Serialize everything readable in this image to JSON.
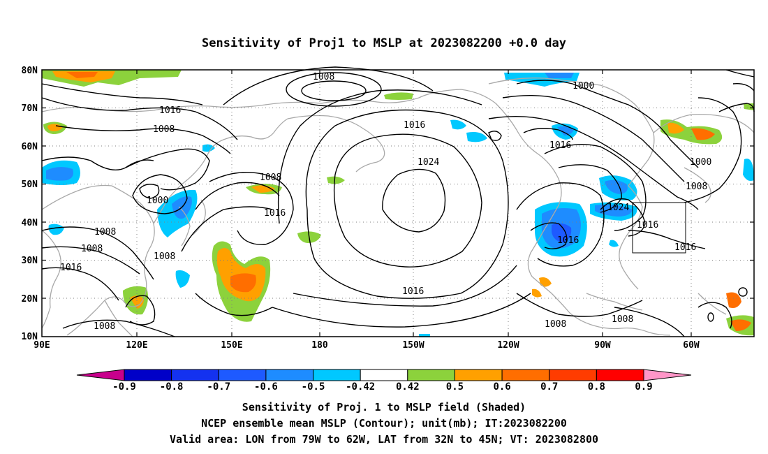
{
  "title": "Sensitivity of Proj1 to MSLP at 2023082200 +0.0 day",
  "lat_labels": [
    "80N",
    "70N",
    "60N",
    "50N",
    "40N",
    "30N",
    "20N",
    "10N"
  ],
  "lon_labels": [
    "90E",
    "120E",
    "150E",
    "180",
    "150W",
    "120W",
    "90W",
    "60W"
  ],
  "contour_labels": [
    {
      "text": "1008",
      "where": "arctic-north-pacific"
    },
    {
      "text": "1016",
      "where": "siberia"
    },
    {
      "text": "1008",
      "where": "siberia-west"
    },
    {
      "text": "1000",
      "where": "hudson-bay"
    },
    {
      "text": "1016",
      "where": "bering-strait"
    },
    {
      "text": "1024",
      "where": "pacific-high-center"
    },
    {
      "text": "1016",
      "where": "north-america-west"
    },
    {
      "text": "1000",
      "where": "greenland"
    },
    {
      "text": "1008",
      "where": "labrador"
    },
    {
      "text": "1008",
      "where": "kamchatka"
    },
    {
      "text": "1016",
      "where": "north-pacific-west"
    },
    {
      "text": "1000",
      "where": "east-asia-low"
    },
    {
      "text": "1008",
      "where": "east-asia-1"
    },
    {
      "text": "1008",
      "where": "tibet"
    },
    {
      "text": "1016",
      "where": "india"
    },
    {
      "text": "1008",
      "where": "south-china"
    },
    {
      "text": "1024",
      "where": "bermuda-high"
    },
    {
      "text": "1016",
      "where": "atlantic-coast"
    },
    {
      "text": "1016",
      "where": "gulf-coast"
    },
    {
      "text": "1016",
      "where": "subtropical-atlantic"
    },
    {
      "text": "1016",
      "where": "tropical-pacific"
    },
    {
      "text": "1008",
      "where": "south-china-sea"
    },
    {
      "text": "1008",
      "where": "central-america"
    },
    {
      "text": "1008",
      "where": "caribbean"
    }
  ],
  "colorbar": {
    "ticks": [
      "-0.9",
      "-0.8",
      "-0.7",
      "-0.6",
      "-0.5",
      "-0.42",
      "0.42",
      "0.5",
      "0.6",
      "0.7",
      "0.8",
      "0.9"
    ],
    "colors": [
      "#0000c8",
      "#1432f0",
      "#1e5aff",
      "#1e8cff",
      "#00c8ff",
      "#ffffff",
      "#8cd23c",
      "#ffa000",
      "#ff6e00",
      "#ff3c00",
      "#ff0000"
    ],
    "low_extreme": "#c8008c",
    "high_extreme": "#ff96c8"
  },
  "caption": {
    "line1": "Sensitivity of Proj. 1 to MSLP field (Shaded)",
    "line2": "NCEP ensemble mean MSLP (Contour); unit(mb); IT:2023082200",
    "line3": "Valid area: LON from 79W to 62W, LAT from 32N to 45N; VT: 2023082800"
  },
  "valid_box": {
    "lon_west": "79W",
    "lon_east": "62W",
    "lat_south": "32N",
    "lat_north": "45N"
  }
}
